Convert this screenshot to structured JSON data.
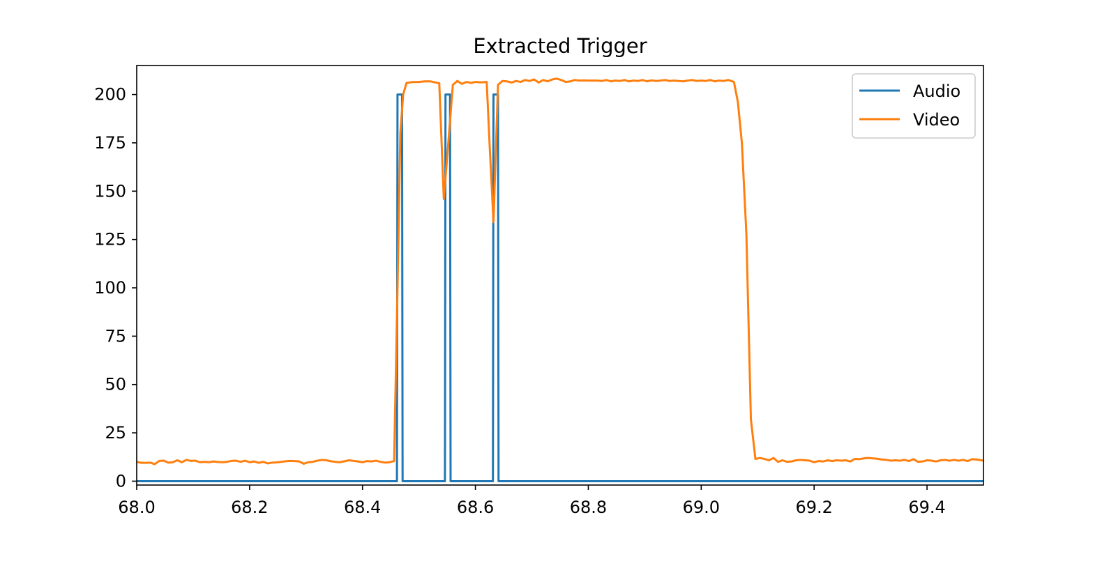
{
  "chart_data": {
    "type": "line",
    "title": "Extracted Trigger",
    "xlabel": "",
    "ylabel": "",
    "xlim": [
      68.0,
      69.5
    ],
    "ylim": [
      -2,
      215
    ],
    "x_ticks": [
      68.0,
      68.2,
      68.4,
      68.6,
      68.8,
      69.0,
      69.2,
      69.4
    ],
    "x_tick_labels": [
      "68.0",
      "68.2",
      "68.4",
      "68.6",
      "68.8",
      "69.0",
      "69.2",
      "69.4"
    ],
    "y_ticks": [
      0,
      25,
      50,
      75,
      100,
      125,
      150,
      175,
      200
    ],
    "y_tick_labels": [
      "0",
      "25",
      "50",
      "75",
      "100",
      "125",
      "150",
      "175",
      "200"
    ],
    "grid": false,
    "legend_position": "top-right",
    "series": [
      {
        "name": "Audio",
        "color": "#1f77b4",
        "points": [
          [
            68.0,
            0
          ],
          [
            68.461,
            0
          ],
          [
            68.462,
            200
          ],
          [
            68.47,
            200
          ],
          [
            68.471,
            0
          ],
          [
            68.546,
            0
          ],
          [
            68.547,
            200
          ],
          [
            68.555,
            200
          ],
          [
            68.556,
            0
          ],
          [
            68.631,
            0
          ],
          [
            68.632,
            200
          ],
          [
            68.64,
            200
          ],
          [
            68.641,
            0
          ],
          [
            69.5,
            0
          ]
        ]
      },
      {
        "name": "Video",
        "color": "#ff7f0e",
        "points": [
          [
            68.0,
            10
          ],
          [
            68.008,
            9.5
          ],
          [
            68.016,
            9.5
          ],
          [
            68.024,
            9.6
          ],
          [
            68.032,
            8.8
          ],
          [
            68.04,
            10.5
          ],
          [
            68.048,
            10.6
          ],
          [
            68.056,
            9.6
          ],
          [
            68.064,
            9.8
          ],
          [
            68.072,
            10.8
          ],
          [
            68.08,
            9.8
          ],
          [
            68.088,
            11.0
          ],
          [
            68.096,
            10.5
          ],
          [
            68.104,
            10.6
          ],
          [
            68.112,
            9.8
          ],
          [
            68.12,
            10.0
          ],
          [
            68.128,
            9.8
          ],
          [
            68.136,
            10.2
          ],
          [
            68.144,
            9.9
          ],
          [
            68.152,
            9.8
          ],
          [
            68.16,
            10.0
          ],
          [
            68.168,
            10.5
          ],
          [
            68.176,
            10.6
          ],
          [
            68.184,
            10.0
          ],
          [
            68.192,
            10.6
          ],
          [
            68.2,
            9.8
          ],
          [
            68.208,
            10.2
          ],
          [
            68.216,
            9.5
          ],
          [
            68.224,
            10.0
          ],
          [
            68.232,
            9.2
          ],
          [
            68.24,
            9.6
          ],
          [
            68.248,
            9.7
          ],
          [
            68.256,
            10.0
          ],
          [
            68.264,
            10.3
          ],
          [
            68.272,
            10.5
          ],
          [
            68.28,
            10.4
          ],
          [
            68.288,
            10.2
          ],
          [
            68.296,
            9.0
          ],
          [
            68.304,
            9.8
          ],
          [
            68.312,
            10.0
          ],
          [
            68.32,
            10.6
          ],
          [
            68.328,
            11.0
          ],
          [
            68.336,
            10.8
          ],
          [
            68.344,
            10.3
          ],
          [
            68.352,
            10.0
          ],
          [
            68.36,
            9.8
          ],
          [
            68.368,
            10.3
          ],
          [
            68.376,
            10.8
          ],
          [
            68.384,
            10.5
          ],
          [
            68.392,
            10.2
          ],
          [
            68.4,
            9.8
          ],
          [
            68.408,
            10.4
          ],
          [
            68.416,
            10.2
          ],
          [
            68.424,
            10.6
          ],
          [
            68.432,
            10.0
          ],
          [
            68.44,
            9.6
          ],
          [
            68.448,
            9.8
          ],
          [
            68.456,
            10.4
          ],
          [
            68.462,
            100
          ],
          [
            68.467,
            180
          ],
          [
            68.472,
            200
          ],
          [
            68.478,
            206
          ],
          [
            68.49,
            206.5
          ],
          [
            68.5,
            206.5
          ],
          [
            68.51,
            206.8
          ],
          [
            68.52,
            206.8
          ],
          [
            68.53,
            206.2
          ],
          [
            68.536,
            205.8
          ],
          [
            68.544,
            146
          ],
          [
            68.552,
            175
          ],
          [
            68.56,
            205
          ],
          [
            68.568,
            207
          ],
          [
            68.576,
            205.5
          ],
          [
            68.584,
            206.5
          ],
          [
            68.592,
            206
          ],
          [
            68.6,
            206.5
          ],
          [
            68.61,
            206.3
          ],
          [
            68.62,
            206.5
          ],
          [
            68.625,
            175
          ],
          [
            68.632,
            134
          ],
          [
            68.64,
            205
          ],
          [
            68.648,
            207
          ],
          [
            68.656,
            206.8
          ],
          [
            68.664,
            206.2
          ],
          [
            68.672,
            207
          ],
          [
            68.68,
            206.5
          ],
          [
            68.688,
            207.5
          ],
          [
            68.696,
            207
          ],
          [
            68.704,
            207.8
          ],
          [
            68.712,
            206.2
          ],
          [
            68.72,
            207.5
          ],
          [
            68.728,
            206.8
          ],
          [
            68.736,
            207.8
          ],
          [
            68.744,
            208.2
          ],
          [
            68.752,
            207.5
          ],
          [
            68.76,
            206.5
          ],
          [
            68.768,
            206.8
          ],
          [
            68.776,
            207.5
          ],
          [
            68.784,
            207.2
          ],
          [
            68.792,
            207.3
          ],
          [
            68.8,
            207.2
          ],
          [
            68.808,
            207.2
          ],
          [
            68.816,
            207.2
          ],
          [
            68.824,
            207.0
          ],
          [
            68.832,
            207.5
          ],
          [
            68.84,
            206.8
          ],
          [
            68.848,
            207.2
          ],
          [
            68.856,
            207.0
          ],
          [
            68.864,
            207.5
          ],
          [
            68.872,
            206.8
          ],
          [
            68.88,
            207.2
          ],
          [
            68.888,
            207.0
          ],
          [
            68.896,
            207.5
          ],
          [
            68.904,
            206.8
          ],
          [
            68.912,
            207.3
          ],
          [
            68.92,
            207.0
          ],
          [
            68.928,
            207.2
          ],
          [
            68.936,
            207.5
          ],
          [
            68.944,
            207.0
          ],
          [
            68.952,
            207.2
          ],
          [
            68.96,
            207.0
          ],
          [
            68.968,
            206.8
          ],
          [
            68.976,
            207.2
          ],
          [
            68.984,
            207.5
          ],
          [
            68.992,
            207.0
          ],
          [
            69.0,
            207.2
          ],
          [
            69.008,
            207.0
          ],
          [
            69.016,
            207.5
          ],
          [
            69.024,
            206.8
          ],
          [
            69.032,
            207.2
          ],
          [
            69.04,
            207.0
          ],
          [
            69.048,
            207.5
          ],
          [
            69.058,
            206.5
          ],
          [
            69.065,
            196
          ],
          [
            69.072,
            175
          ],
          [
            69.08,
            128
          ],
          [
            69.088,
            32
          ],
          [
            69.096,
            11.5
          ],
          [
            69.104,
            12.0
          ],
          [
            69.112,
            11.5
          ],
          [
            69.12,
            10.8
          ],
          [
            69.128,
            12.0
          ],
          [
            69.136,
            10.0
          ],
          [
            69.144,
            10.8
          ],
          [
            69.152,
            10.0
          ],
          [
            69.16,
            10.2
          ],
          [
            69.168,
            10.8
          ],
          [
            69.176,
            11.0
          ],
          [
            69.184,
            10.8
          ],
          [
            69.192,
            10.6
          ],
          [
            69.2,
            9.8
          ],
          [
            69.208,
            10.4
          ],
          [
            69.216,
            10.2
          ],
          [
            69.224,
            10.8
          ],
          [
            69.232,
            10.4
          ],
          [
            69.24,
            10.8
          ],
          [
            69.248,
            10.6
          ],
          [
            69.256,
            10.8
          ],
          [
            69.264,
            10.2
          ],
          [
            69.272,
            11.5
          ],
          [
            69.28,
            11.4
          ],
          [
            69.288,
            11.8
          ],
          [
            69.296,
            12.0
          ],
          [
            69.304,
            11.8
          ],
          [
            69.312,
            11.6
          ],
          [
            69.32,
            11.2
          ],
          [
            69.328,
            11.0
          ],
          [
            69.336,
            10.6
          ],
          [
            69.344,
            10.8
          ],
          [
            69.352,
            10.6
          ],
          [
            69.36,
            11.0
          ],
          [
            69.368,
            10.4
          ],
          [
            69.376,
            11.4
          ],
          [
            69.384,
            10.0
          ],
          [
            69.392,
            10.2
          ],
          [
            69.4,
            10.8
          ],
          [
            69.408,
            10.6
          ],
          [
            69.416,
            10.2
          ],
          [
            69.424,
            10.8
          ],
          [
            69.432,
            11.0
          ],
          [
            69.44,
            10.6
          ],
          [
            69.448,
            11.0
          ],
          [
            69.456,
            10.6
          ],
          [
            69.464,
            11.0
          ],
          [
            69.472,
            10.4
          ],
          [
            69.48,
            11.4
          ],
          [
            69.488,
            11.2
          ],
          [
            69.5,
            10.6
          ]
        ]
      }
    ]
  }
}
